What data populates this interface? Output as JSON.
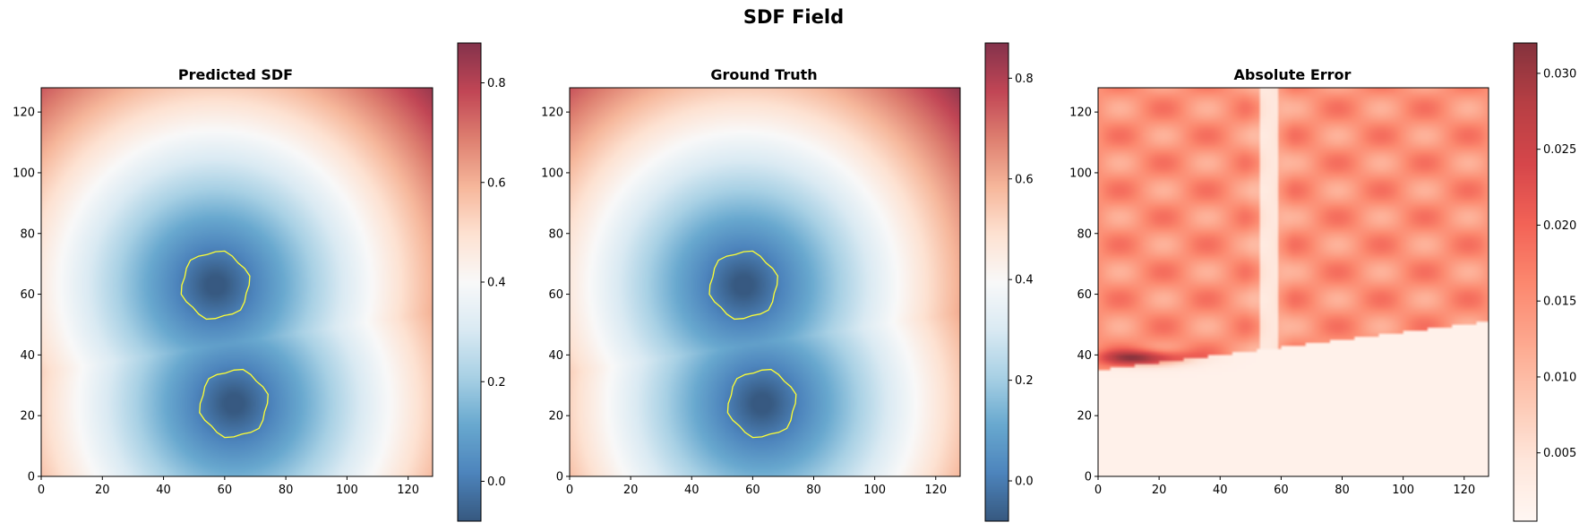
{
  "figure": {
    "title": "SDF Field"
  },
  "chart_data": [
    {
      "type": "heatmap",
      "title": "Predicted SDF",
      "xlim": [
        0,
        128
      ],
      "ylim": [
        0,
        128
      ],
      "xticks": [
        0,
        20,
        40,
        60,
        80,
        100,
        120
      ],
      "yticks": [
        0,
        20,
        40,
        60,
        80,
        100,
        120
      ],
      "colormap": "RdBu_r",
      "colorbar": {
        "range": [
          -0.08,
          0.88
        ],
        "ticks": [
          0.0,
          0.2,
          0.4,
          0.6,
          0.8
        ],
        "tick_labels": [
          "0.0",
          "0.2",
          "0.4",
          "0.6",
          "0.8"
        ]
      },
      "field": {
        "kind": "sdf",
        "circles": [
          {
            "x": 57,
            "y": 63,
            "r": 11
          },
          {
            "x": 63,
            "y": 24,
            "r": 11
          }
        ]
      },
      "contour": {
        "level": 0.0,
        "color": "#ffff33"
      }
    },
    {
      "type": "heatmap",
      "title": "Ground Truth",
      "xlim": [
        0,
        128
      ],
      "ylim": [
        0,
        128
      ],
      "xticks": [
        0,
        20,
        40,
        60,
        80,
        100,
        120
      ],
      "yticks": [
        0,
        20,
        40,
        60,
        80,
        100,
        120
      ],
      "colormap": "RdBu_r",
      "colorbar": {
        "range": [
          -0.08,
          0.87
        ],
        "ticks": [
          0.0,
          0.2,
          0.4,
          0.6,
          0.8
        ],
        "tick_labels": [
          "0.0",
          "0.2",
          "0.4",
          "0.6",
          "0.8"
        ]
      },
      "field": {
        "kind": "sdf",
        "circles": [
          {
            "x": 57,
            "y": 63,
            "r": 11
          },
          {
            "x": 63,
            "y": 24,
            "r": 11
          }
        ]
      },
      "contour": {
        "level": 0.0,
        "color": "#ffff33"
      }
    },
    {
      "type": "heatmap",
      "title": "Absolute Error",
      "xlim": [
        0,
        128
      ],
      "ylim": [
        0,
        128
      ],
      "xticks": [
        0,
        20,
        40,
        60,
        80,
        100,
        120
      ],
      "yticks": [
        0,
        20,
        40,
        60,
        80,
        100,
        120
      ],
      "colormap": "Reds",
      "colorbar": {
        "range": [
          0.0005,
          0.032
        ],
        "ticks": [
          0.005,
          0.01,
          0.015,
          0.02,
          0.025,
          0.03
        ],
        "tick_labels": [
          "0.005",
          "0.010",
          "0.015",
          "0.020",
          "0.025",
          "0.030"
        ]
      },
      "field": {
        "kind": "error",
        "boundary_line": {
          "y_at_x0": 35,
          "y_at_x128": 51
        },
        "bright_band_x": 56,
        "peak": {
          "x": 15,
          "y": 39
        }
      }
    }
  ]
}
